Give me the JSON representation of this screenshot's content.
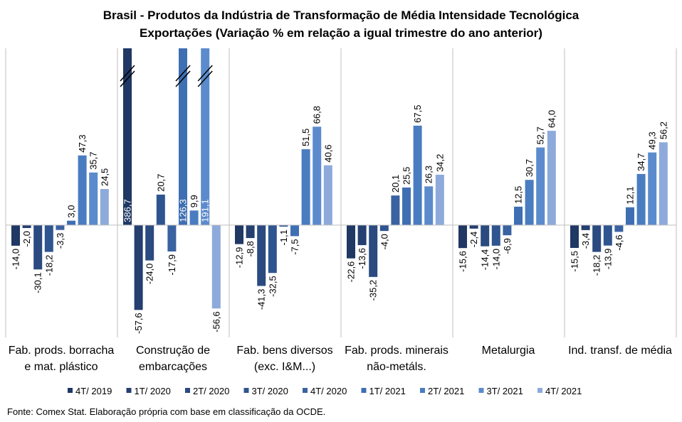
{
  "chart_data": {
    "type": "bar",
    "title": "Brasil - Produtos da Indústria de Transformação de Média Intensidade Tecnológica",
    "subtitle": "Exportações (Variação % em relação a igual trimestre do ano anterior)",
    "source": "Fonte: Comex Stat. Elaboração própria com base em classificação da OCDE.",
    "categories": [
      "Fab. prods. borracha e mat. plástico",
      "Construção de embarcações",
      "Fab. bens diversos (exc. I&M...)",
      "Fab. prods. minerais não-metáls.",
      "Metalurgia",
      "Ind. transf. de média"
    ],
    "ylim": [
      -70,
      120
    ],
    "series": [
      {
        "name": "4T/ 2019",
        "color": "#1f3864",
        "values": [
          -14.0,
          386.7,
          -12.9,
          -22.6,
          -15.6,
          -15.5
        ],
        "value_labels": [
          "-14,0",
          "386,7",
          "-12,9",
          "-22,6",
          "-15,6",
          "-15,5"
        ]
      },
      {
        "name": "1T/ 2020",
        "color": "#243f70",
        "values": [
          -2.0,
          -57.6,
          -8.8,
          -13.6,
          -2.4,
          -3.4
        ],
        "value_labels": [
          "-2,0",
          "-57,6",
          "-8,8",
          "-13,6",
          "-2,4",
          "-3,4"
        ]
      },
      {
        "name": "2T/ 2020",
        "color": "#2a4a80",
        "values": [
          -30.1,
          -24.0,
          -41.3,
          -35.2,
          -14.4,
          -18.2
        ],
        "value_labels": [
          "-30,1",
          "-24,0",
          "-41,3",
          "-35,2",
          "-14,4",
          "-18,2"
        ]
      },
      {
        "name": "3T/ 2020",
        "color": "#2f5590",
        "values": [
          -18.2,
          20.7,
          -32.5,
          -4.0,
          -14.0,
          -13.9
        ],
        "value_labels": [
          "-18,2",
          "20,7",
          "-32,5",
          "-4,0",
          "-14,0",
          "-13,9"
        ]
      },
      {
        "name": "4T/ 2020",
        "color": "#3a62a0",
        "values": [
          -3.3,
          -17.9,
          -1.1,
          20.1,
          -6.9,
          -4.6
        ],
        "value_labels": [
          "-3,3",
          "-17,9",
          "-1,1",
          "20,1",
          "-6,9",
          "-4,6"
        ]
      },
      {
        "name": "1T/ 2021",
        "color": "#3f6fb3",
        "values": [
          3.0,
          126.3,
          -7.5,
          25.5,
          12.5,
          12.1
        ],
        "value_labels": [
          "3,0",
          "126,3",
          "-7,5",
          "25,5",
          "12,5",
          "12,1"
        ]
      },
      {
        "name": "2T/ 2021",
        "color": "#4a7cc0",
        "values": [
          47.3,
          9.9,
          51.5,
          67.5,
          30.7,
          34.7
        ],
        "value_labels": [
          "47,3",
          "9,9",
          "51,5",
          "67,5",
          "30,7",
          "34,7"
        ]
      },
      {
        "name": "3T/ 2021",
        "color": "#5b8bcc",
        "values": [
          35.7,
          191.1,
          66.8,
          26.3,
          52.7,
          49.3
        ],
        "value_labels": [
          "35,7",
          "191,1",
          "66,8",
          "26,3",
          "52,7",
          "49,3"
        ]
      },
      {
        "name": "4T/ 2021",
        "color": "#8eaadb",
        "values": [
          24.5,
          -56.6,
          40.6,
          34.2,
          64.0,
          56.2
        ],
        "value_labels": [
          "24,5",
          "-56,6",
          "40,6",
          "34,2",
          "64,0",
          "56,2"
        ]
      }
    ]
  }
}
